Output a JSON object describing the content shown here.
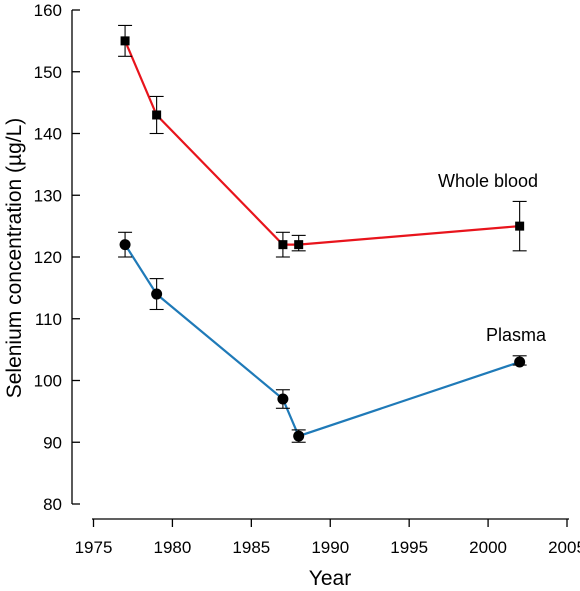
{
  "chart_data": {
    "type": "line",
    "xlabel": "Year",
    "ylabel": "Selenium concentration (µg/L)",
    "xlim": [
      1975,
      2005
    ],
    "ylim": [
      80,
      160
    ],
    "x_ticks": [
      1975,
      1980,
      1985,
      1990,
      1995,
      2000,
      2005
    ],
    "y_ticks": [
      80,
      90,
      100,
      110,
      120,
      130,
      140,
      150,
      160
    ],
    "grid": false,
    "legend": "none",
    "series": [
      {
        "name": "Whole blood",
        "color": "#e8141c",
        "marker": "square",
        "x": [
          1977,
          1979,
          1987,
          1988,
          2002
        ],
        "y": [
          155,
          143,
          122,
          122,
          125
        ],
        "err_low": [
          152.5,
          140,
          120,
          121,
          121
        ],
        "err_high": [
          157.5,
          146,
          124,
          123.5,
          129
        ]
      },
      {
        "name": "Plasma",
        "color": "#1f7ab8",
        "marker": "circle",
        "x": [
          1977,
          1979,
          1987,
          1988,
          2002
        ],
        "y": [
          122,
          114,
          97,
          91,
          103
        ],
        "err_low": [
          120,
          111.5,
          95.5,
          90,
          102.5
        ],
        "err_high": [
          124,
          116.5,
          98.5,
          92,
          104
        ]
      }
    ]
  }
}
